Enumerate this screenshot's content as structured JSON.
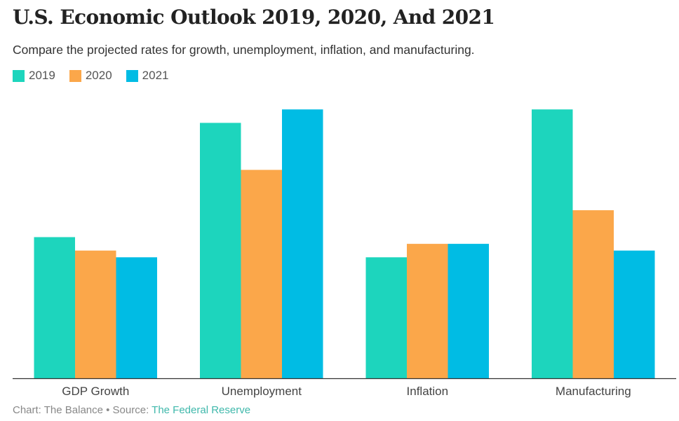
{
  "header": {
    "title": "U.S. Economic Outlook 2019, 2020, And 2021",
    "subtitle": "Compare the projected rates for growth, unemployment, inflation, and manufacturing."
  },
  "footer": {
    "prefix": "Chart: The Balance • Source: ",
    "source_name": "The Federal Reserve"
  },
  "colors": {
    "2019": "#1dd5bd",
    "2020": "#fba74a",
    "2021": "#00bce4",
    "axis": "#333333"
  },
  "chart_data": {
    "type": "bar",
    "title": "U.S. Economic Outlook 2019, 2020, And 2021",
    "categories": [
      "GDP Growth",
      "Unemployment",
      "Inflation",
      "Manufacturing"
    ],
    "series": [
      {
        "name": "2019",
        "values": [
          2.1,
          3.8,
          1.8,
          4.0
        ]
      },
      {
        "name": "2020",
        "values": [
          1.9,
          3.1,
          2.0,
          2.5
        ]
      },
      {
        "name": "2021",
        "values": [
          1.8,
          4.0,
          2.0,
          1.9
        ]
      }
    ],
    "ylim": [
      0,
      4.2
    ],
    "yaxis_visible": false,
    "grid": false,
    "legend_position": "top-left",
    "xlabel": "",
    "ylabel": ""
  }
}
